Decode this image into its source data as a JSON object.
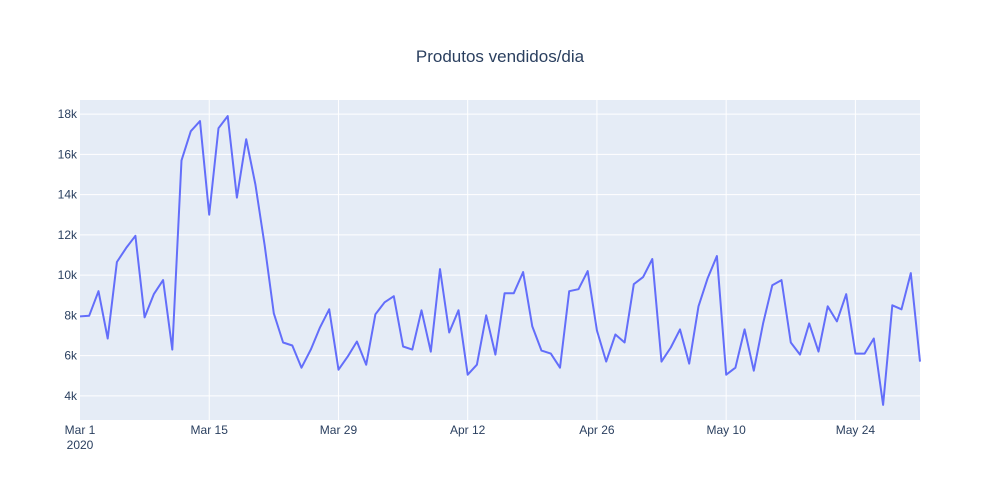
{
  "chart_data": {
    "type": "line",
    "title": "Produtos vendidos/dia",
    "xlabel": "",
    "ylabel": "",
    "x_start": "2020-03-01",
    "x_end": "2020-05-31",
    "x_ticks": [
      {
        "date": "2020-03-01",
        "label": "Mar 1",
        "sublabel": "2020"
      },
      {
        "date": "2020-03-15",
        "label": "Mar 15",
        "sublabel": ""
      },
      {
        "date": "2020-03-29",
        "label": "Mar 29",
        "sublabel": ""
      },
      {
        "date": "2020-04-12",
        "label": "Apr 12",
        "sublabel": ""
      },
      {
        "date": "2020-04-26",
        "label": "Apr 26",
        "sublabel": ""
      },
      {
        "date": "2020-05-10",
        "label": "May 10",
        "sublabel": ""
      },
      {
        "date": "2020-05-24",
        "label": "May 24",
        "sublabel": ""
      }
    ],
    "y_ticks": [
      {
        "value": 4000,
        "label": "4k"
      },
      {
        "value": 6000,
        "label": "6k"
      },
      {
        "value": 8000,
        "label": "8k"
      },
      {
        "value": 10000,
        "label": "10k"
      },
      {
        "value": 12000,
        "label": "12k"
      },
      {
        "value": 14000,
        "label": "14k"
      },
      {
        "value": 16000,
        "label": "16k"
      },
      {
        "value": 18000,
        "label": "18k"
      }
    ],
    "ylim": [
      2800,
      18700
    ],
    "grid": true,
    "colors": {
      "line": "#636efa",
      "plot_bg": "#e5ecf6",
      "grid": "#ffffff",
      "text": "#2a3f5f"
    },
    "series": [
      {
        "name": "",
        "x": [
          "2020-03-01",
          "2020-03-02",
          "2020-03-03",
          "2020-03-04",
          "2020-03-05",
          "2020-03-06",
          "2020-03-07",
          "2020-03-08",
          "2020-03-09",
          "2020-03-10",
          "2020-03-11",
          "2020-03-12",
          "2020-03-13",
          "2020-03-14",
          "2020-03-15",
          "2020-03-16",
          "2020-03-17",
          "2020-03-18",
          "2020-03-19",
          "2020-03-20",
          "2020-03-21",
          "2020-03-22",
          "2020-03-23",
          "2020-03-24",
          "2020-03-25",
          "2020-03-26",
          "2020-03-27",
          "2020-03-28",
          "2020-03-29",
          "2020-03-30",
          "2020-03-31",
          "2020-04-01",
          "2020-04-02",
          "2020-04-03",
          "2020-04-04",
          "2020-04-05",
          "2020-04-06",
          "2020-04-07",
          "2020-04-08",
          "2020-04-09",
          "2020-04-10",
          "2020-04-11",
          "2020-04-12",
          "2020-04-13",
          "2020-04-14",
          "2020-04-15",
          "2020-04-16",
          "2020-04-17",
          "2020-04-18",
          "2020-04-19",
          "2020-04-20",
          "2020-04-21",
          "2020-04-22",
          "2020-04-23",
          "2020-04-24",
          "2020-04-25",
          "2020-04-26",
          "2020-04-27",
          "2020-04-28",
          "2020-04-29",
          "2020-04-30",
          "2020-05-01",
          "2020-05-02",
          "2020-05-03",
          "2020-05-04",
          "2020-05-05",
          "2020-05-06",
          "2020-05-07",
          "2020-05-08",
          "2020-05-09",
          "2020-05-10",
          "2020-05-11",
          "2020-05-12",
          "2020-05-13",
          "2020-05-14",
          "2020-05-15",
          "2020-05-16",
          "2020-05-17",
          "2020-05-18",
          "2020-05-19",
          "2020-05-20",
          "2020-05-21",
          "2020-05-22",
          "2020-05-23",
          "2020-05-24",
          "2020-05-25",
          "2020-05-26",
          "2020-05-27",
          "2020-05-28",
          "2020-05-29",
          "2020-05-30",
          "2020-05-31"
        ],
        "values": [
          7950,
          7980,
          9200,
          6850,
          10650,
          11350,
          11950,
          7900,
          9050,
          9750,
          6300,
          15700,
          17150,
          17650,
          13000,
          17300,
          17900,
          13850,
          16750,
          14500,
          11500,
          8100,
          6650,
          6500,
          5400,
          6300,
          7400,
          8300,
          5300,
          5950,
          6700,
          5550,
          8050,
          8650,
          8950,
          6450,
          6300,
          8250,
          6200,
          10300,
          7150,
          8250,
          5050,
          5550,
          8000,
          6050,
          9100,
          9100,
          10150,
          7450,
          6250,
          6100,
          5400,
          9200,
          9300,
          10200,
          7250,
          5700,
          7050,
          6650,
          9550,
          9900,
          10800,
          5700,
          6400,
          7300,
          5600,
          8450,
          9850,
          10950,
          5050,
          5400,
          7300,
          5250,
          7600,
          9500,
          9750,
          6650,
          6050,
          7600,
          6200,
          8450,
          7700,
          9050,
          6100,
          6100,
          6850,
          3550,
          8500,
          8300,
          10100,
          5700
        ]
      }
    ]
  }
}
